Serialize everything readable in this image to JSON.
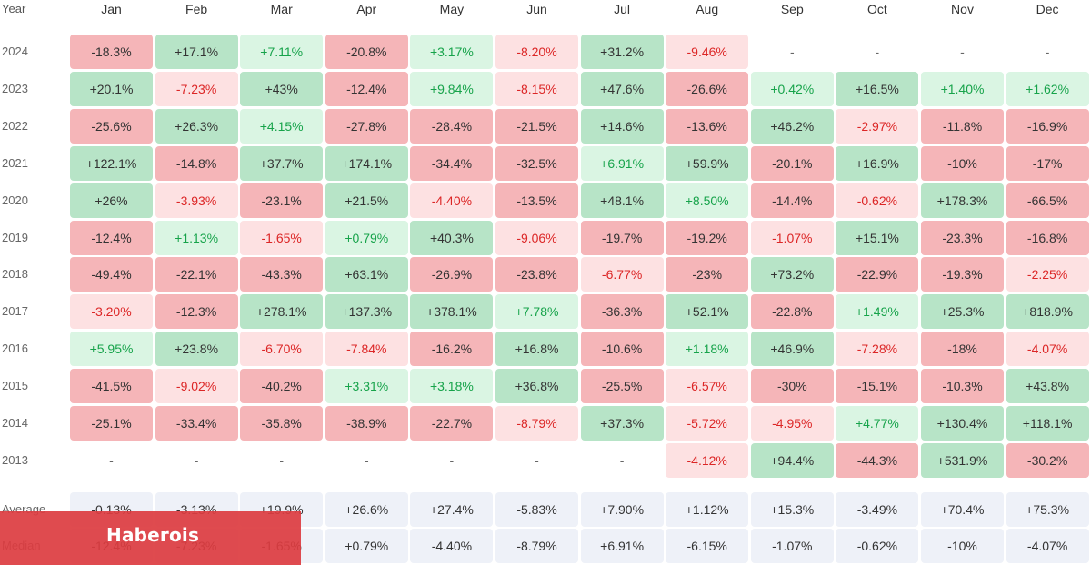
{
  "chart_data": {
    "type": "heatmap",
    "year_header": "Year",
    "months": [
      "Jan",
      "Feb",
      "Mar",
      "Apr",
      "May",
      "Jun",
      "Jul",
      "Aug",
      "Sep",
      "Oct",
      "Nov",
      "Dec"
    ],
    "rows": [
      {
        "label": "2024",
        "values": [
          "-18.3%",
          "+17.1%",
          "+7.11%",
          "-20.8%",
          "+3.17%",
          "-8.20%",
          "+31.2%",
          "-9.46%",
          "-",
          "-",
          "-",
          "-"
        ]
      },
      {
        "label": "2023",
        "values": [
          "+20.1%",
          "-7.23%",
          "+43%",
          "-12.4%",
          "+9.84%",
          "-8.15%",
          "+47.6%",
          "-26.6%",
          "+0.42%",
          "+16.5%",
          "+1.40%",
          "+1.62%"
        ]
      },
      {
        "label": "2022",
        "values": [
          "-25.6%",
          "+26.3%",
          "+4.15%",
          "-27.8%",
          "-28.4%",
          "-21.5%",
          "+14.6%",
          "-13.6%",
          "+46.2%",
          "-2.97%",
          "-11.8%",
          "-16.9%"
        ]
      },
      {
        "label": "2021",
        "values": [
          "+122.1%",
          "-14.8%",
          "+37.7%",
          "+174.1%",
          "-34.4%",
          "-32.5%",
          "+6.91%",
          "+59.9%",
          "-20.1%",
          "+16.9%",
          "-10%",
          "-17%"
        ]
      },
      {
        "label": "2020",
        "values": [
          "+26%",
          "-3.93%",
          "-23.1%",
          "+21.5%",
          "-4.40%",
          "-13.5%",
          "+48.1%",
          "+8.50%",
          "-14.4%",
          "-0.62%",
          "+178.3%",
          "-66.5%"
        ]
      },
      {
        "label": "2019",
        "values": [
          "-12.4%",
          "+1.13%",
          "-1.65%",
          "+0.79%",
          "+40.3%",
          "-9.06%",
          "-19.7%",
          "-19.2%",
          "-1.07%",
          "+15.1%",
          "-23.3%",
          "-16.8%"
        ]
      },
      {
        "label": "2018",
        "values": [
          "-49.4%",
          "-22.1%",
          "-43.3%",
          "+63.1%",
          "-26.9%",
          "-23.8%",
          "-6.77%",
          "-23%",
          "+73.2%",
          "-22.9%",
          "-19.3%",
          "-2.25%"
        ]
      },
      {
        "label": "2017",
        "values": [
          "-3.20%",
          "-12.3%",
          "+278.1%",
          "+137.3%",
          "+378.1%",
          "+7.78%",
          "-36.3%",
          "+52.1%",
          "-22.8%",
          "+1.49%",
          "+25.3%",
          "+818.9%"
        ]
      },
      {
        "label": "2016",
        "values": [
          "+5.95%",
          "+23.8%",
          "-6.70%",
          "-7.84%",
          "-16.2%",
          "+16.8%",
          "-10.6%",
          "+1.18%",
          "+46.9%",
          "-7.28%",
          "-18%",
          "-4.07%"
        ]
      },
      {
        "label": "2015",
        "values": [
          "-41.5%",
          "-9.02%",
          "-40.2%",
          "+3.31%",
          "+3.18%",
          "+36.8%",
          "-25.5%",
          "-6.57%",
          "-30%",
          "-15.1%",
          "-10.3%",
          "+43.8%"
        ]
      },
      {
        "label": "2014",
        "values": [
          "-25.1%",
          "-33.4%",
          "-35.8%",
          "-38.9%",
          "-22.7%",
          "-8.79%",
          "+37.3%",
          "-5.72%",
          "-4.95%",
          "+4.77%",
          "+130.4%",
          "+118.1%"
        ]
      },
      {
        "label": "2013",
        "values": [
          "-",
          "-",
          "-",
          "-",
          "-",
          "-",
          "-",
          "-4.12%",
          "+94.4%",
          "-44.3%",
          "+531.9%",
          "-30.2%"
        ]
      }
    ],
    "summary": [
      {
        "label": "Average",
        "values": [
          "-0.13%",
          "-3.13%",
          "+19.9%",
          "+26.6%",
          "+27.4%",
          "-5.83%",
          "+7.90%",
          "+1.12%",
          "+15.3%",
          "-3.49%",
          "+70.4%",
          "+75.3%"
        ]
      },
      {
        "label": "Median",
        "values": [
          "-12.4%",
          "-7.23%",
          "-1.65%",
          "+0.79%",
          "-4.40%",
          "-8.79%",
          "+6.91%",
          "-6.15%",
          "-1.07%",
          "-0.62%",
          "-10%",
          "-4.07%"
        ]
      }
    ],
    "colors": {
      "positive_text": "#16a34a",
      "negative_text": "#dc2626",
      "dark_text": "#333333",
      "strong_green": "#b7e4c7",
      "light_green": "#daf5e3",
      "strong_red": "#f5b5b8",
      "light_red": "#fde1e2",
      "summary_bg": "#eef1f8"
    }
  },
  "watermark": {
    "text": "Haberois",
    "color": "#dc3c40"
  }
}
